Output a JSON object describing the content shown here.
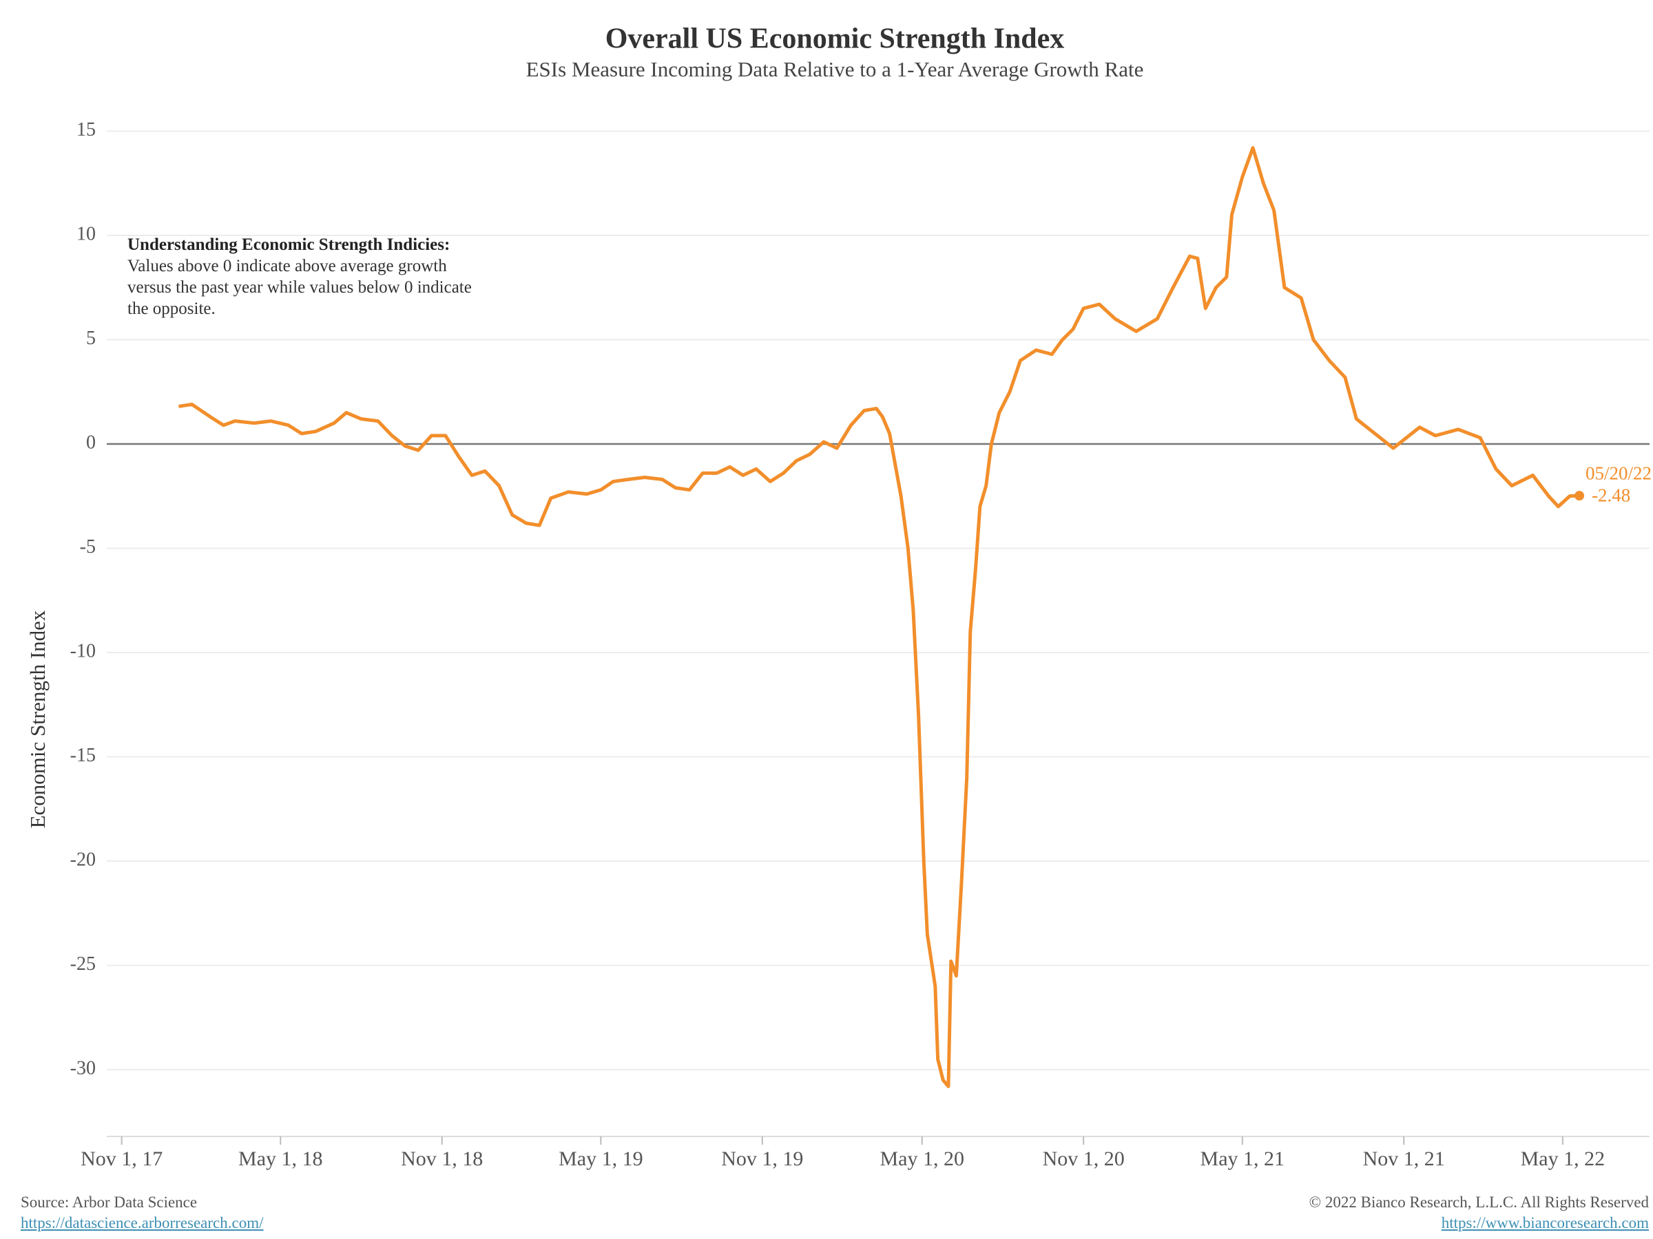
{
  "chart_data": {
    "type": "line",
    "title": "Overall US Economic Strength Index",
    "subtitle": "ESIs Measure Incoming Data Relative to a 1-Year Average Growth Rate",
    "y_label": "Economic Strength Index",
    "note_title": "Understanding Economic Strength Indicies:",
    "note_text": "Values above 0 indicate above average growth versus the past year while values below 0 indicate the opposite.",
    "last_date_label": "05/20/22",
    "source": "Source: Arbor Data Science",
    "source_url": "https://datascience.arborresearch.com/",
    "copyright": "© 2022 Bianco Research, L.L.C. All Rights Reserved",
    "copyright_url": "https://www.biancoresearch.com",
    "grid": true,
    "zero_line": true,
    "xlim": [
      "2017-10-15",
      "2022-08-08"
    ],
    "xticks": [
      {
        "value": "2017-11-01",
        "label": "Nov 1, 17"
      },
      {
        "value": "2018-05-01",
        "label": "May 1, 18"
      },
      {
        "value": "2018-11-01",
        "label": "Nov 1, 18"
      },
      {
        "value": "2019-05-01",
        "label": "May 1, 19"
      },
      {
        "value": "2019-11-01",
        "label": "Nov 1, 19"
      },
      {
        "value": "2020-05-01",
        "label": "May 1, 20"
      },
      {
        "value": "2020-11-01",
        "label": "Nov 1, 20"
      },
      {
        "value": "2021-05-01",
        "label": "May 1, 21"
      },
      {
        "value": "2021-11-01",
        "label": "Nov 1, 21"
      },
      {
        "value": "2022-05-01",
        "label": "May 1, 22"
      }
    ],
    "ylim": [
      -33.2,
      16.6
    ],
    "yticks": [
      -30,
      -25,
      -20,
      -15,
      -10,
      -5,
      0,
      5,
      10,
      15
    ],
    "x": [
      "2018-01-05",
      "2018-01-20",
      "2018-02-10",
      "2018-02-25",
      "2018-03-10",
      "2018-04-01",
      "2018-04-20",
      "2018-05-10",
      "2018-05-25",
      "2018-06-10",
      "2018-07-01",
      "2018-07-15",
      "2018-08-01",
      "2018-08-20",
      "2018-09-05",
      "2018-09-20",
      "2018-10-05",
      "2018-10-20",
      "2018-11-05",
      "2018-11-20",
      "2018-12-05",
      "2018-12-20",
      "2019-01-05",
      "2019-01-20",
      "2019-02-05",
      "2019-02-20",
      "2019-03-05",
      "2019-03-25",
      "2019-04-15",
      "2019-05-01",
      "2019-05-15",
      "2019-06-01",
      "2019-06-20",
      "2019-07-10",
      "2019-07-25",
      "2019-08-10",
      "2019-08-25",
      "2019-09-10",
      "2019-09-25",
      "2019-10-10",
      "2019-10-25",
      "2019-11-10",
      "2019-11-25",
      "2019-12-10",
      "2019-12-25",
      "2020-01-10",
      "2020-01-25",
      "2020-02-10",
      "2020-02-25",
      "2020-03-10",
      "2020-03-17",
      "2020-03-25",
      "2020-04-07",
      "2020-04-15",
      "2020-04-21",
      "2020-04-27",
      "2020-05-03",
      "2020-05-07",
      "2020-05-16",
      "2020-05-19",
      "2020-05-25",
      "2020-05-31",
      "2020-06-03",
      "2020-06-09",
      "2020-06-15",
      "2020-06-21",
      "2020-06-25",
      "2020-07-01",
      "2020-07-06",
      "2020-07-13",
      "2020-07-19",
      "2020-07-28",
      "2020-08-09",
      "2020-08-21",
      "2020-09-08",
      "2020-09-26",
      "2020-10-08",
      "2020-10-20",
      "2020-11-01",
      "2020-11-19",
      "2020-12-07",
      "2020-12-31",
      "2021-01-24",
      "2021-02-11",
      "2021-03-02",
      "2021-03-11",
      "2021-03-20",
      "2021-04-01",
      "2021-04-13",
      "2021-04-19",
      "2021-05-01",
      "2021-05-13",
      "2021-05-25",
      "2021-06-06",
      "2021-06-18",
      "2021-07-07",
      "2021-07-21",
      "2021-08-08",
      "2021-08-26",
      "2021-09-08",
      "2021-09-26",
      "2021-10-20",
      "2021-11-01",
      "2021-11-19",
      "2021-12-07",
      "2022-01-02",
      "2022-01-27",
      "2022-02-14",
      "2022-03-04",
      "2022-03-28",
      "2022-04-15",
      "2022-04-26",
      "2022-05-09",
      "2022-05-20"
    ],
    "series": [
      {
        "name": "Economic Strength Index",
        "color": "#f28e2b",
        "values": [
          1.8,
          1.9,
          1.3,
          0.9,
          1.1,
          1.0,
          1.1,
          0.9,
          0.5,
          0.6,
          1.0,
          1.5,
          1.2,
          1.1,
          0.4,
          -0.1,
          -0.3,
          0.4,
          0.4,
          -0.6,
          -1.5,
          -1.3,
          -2.0,
          -3.4,
          -3.8,
          -3.9,
          -2.6,
          -2.3,
          -2.4,
          -2.2,
          -1.8,
          -1.7,
          -1.6,
          -1.7,
          -2.1,
          -2.2,
          -1.4,
          -1.4,
          -1.1,
          -1.5,
          -1.2,
          -1.8,
          -1.4,
          -0.8,
          -0.5,
          0.1,
          -0.2,
          0.9,
          1.6,
          1.7,
          1.3,
          0.5,
          -2.5,
          -5,
          -8,
          -13,
          -20,
          -23.5,
          -26,
          -29.5,
          -30.5,
          -30.8,
          -24.8,
          -25.5,
          -21,
          -16,
          -9,
          -6,
          -3,
          -2,
          0,
          1.5,
          2.5,
          4,
          4.5,
          4.3,
          5,
          5.5,
          6.5,
          6.7,
          6,
          5.4,
          6,
          7.5,
          9,
          8.9,
          6.5,
          7.5,
          8,
          11,
          12.8,
          14.2,
          12.5,
          11.2,
          7.5,
          7,
          5,
          4,
          3.2,
          1.2,
          0.6,
          -0.2,
          0.2,
          0.8,
          0.4,
          0.7,
          0.3,
          -1.2,
          -2,
          -1.5,
          -2.5,
          -3,
          -2.5,
          -2.48
        ]
      }
    ]
  }
}
